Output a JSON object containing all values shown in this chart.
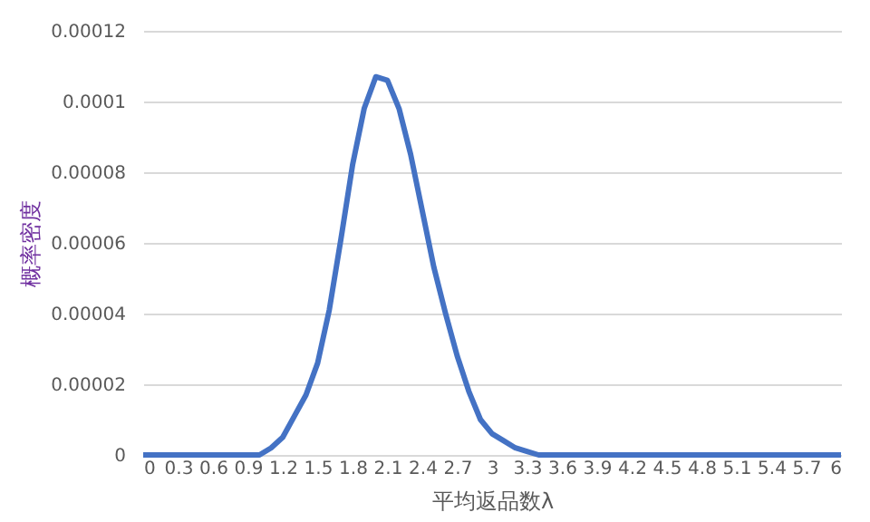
{
  "chart_data": {
    "type": "line",
    "xlabel": "平均返品数λ",
    "ylabel": "概率密度",
    "x": [
      0,
      0.1,
      0.2,
      0.3,
      0.4,
      0.5,
      0.6,
      0.7,
      0.8,
      0.9,
      1,
      1.1,
      1.2,
      1.3,
      1.4,
      1.5,
      1.6,
      1.7,
      1.8,
      1.9,
      2,
      2.1,
      2.2,
      2.3,
      2.4,
      2.5,
      2.6,
      2.7,
      2.8,
      2.9,
      3,
      3.1,
      3.2,
      3.3,
      3.4,
      3.5,
      3.6,
      3.7,
      3.8,
      3.9,
      4,
      4.1,
      4.2,
      4.3,
      4.4,
      4.5,
      4.6,
      4.7,
      4.8,
      4.9,
      5,
      5.1,
      5.2,
      5.3,
      5.4,
      5.5,
      5.6,
      5.7,
      5.8,
      5.9,
      6
    ],
    "series": [
      {
        "color": "#4472c4",
        "values": [
          0,
          0,
          0,
          0,
          0,
          0,
          0,
          0,
          0,
          0,
          0,
          2e-06,
          5e-06,
          1.1e-05,
          1.7e-05,
          2.6e-05,
          4.1e-05,
          6.1e-05,
          8.2e-05,
          9.8e-05,
          0.000107,
          0.000106,
          9.8e-05,
          8.5e-05,
          6.9e-05,
          5.3e-05,
          4e-05,
          2.8e-05,
          1.8e-05,
          1e-05,
          6e-06,
          4e-06,
          2e-06,
          1e-06,
          0,
          0,
          0,
          0,
          0,
          0,
          0,
          0,
          0,
          0,
          0,
          0,
          0,
          0,
          0,
          0,
          0,
          0,
          0,
          0,
          0,
          0,
          0,
          0,
          0,
          0,
          0
        ]
      }
    ],
    "xlim": [
      0,
      6
    ],
    "xticks": [
      0,
      0.3,
      0.6,
      0.9,
      1.2,
      1.5,
      1.8,
      2.1,
      2.4,
      2.7,
      3,
      3.3,
      3.6,
      3.9,
      4.2,
      4.5,
      4.8,
      5.1,
      5.4,
      5.7,
      6
    ],
    "ylim": [
      0,
      0.00012
    ],
    "yticks": [
      0,
      {
        "value": 2e-05,
        "label": "0.00002"
      },
      {
        "value": 4e-05,
        "label": "0.00004"
      },
      {
        "value": 6e-05,
        "label": "0.00006"
      },
      {
        "value": 8e-05,
        "label": "0.00008"
      },
      0.0001,
      0.00012
    ],
    "grid": "y",
    "marker": "none",
    "line_style": "solid"
  }
}
